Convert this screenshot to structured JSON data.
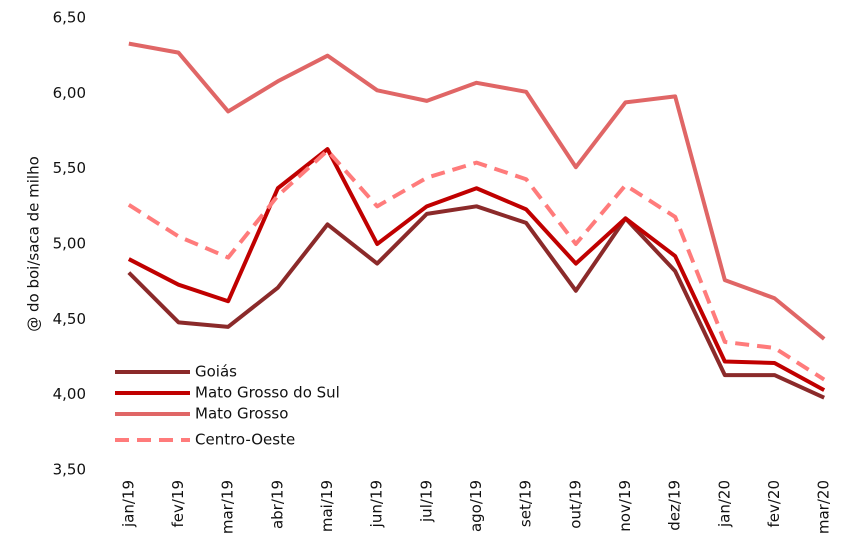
{
  "chart_data": {
    "type": "line",
    "y_label": "@ do boi/saca de milho",
    "categories": [
      "jan/19",
      "fev/19",
      "mar/19",
      "abr/19",
      "mai/19",
      "jun/19",
      "jul/19",
      "ago/19",
      "set/19",
      "out/19",
      "nov/19",
      "dez/19",
      "jan/20",
      "fev/20",
      "mar/20"
    ],
    "series": [
      {
        "name": "Goiás",
        "color": "#8b2a2a",
        "dashed": false,
        "values": [
          4.81,
          4.48,
          4.45,
          4.71,
          5.13,
          4.87,
          5.2,
          5.25,
          5.14,
          4.69,
          5.17,
          4.82,
          4.13,
          4.13,
          3.98
        ]
      },
      {
        "name": "Mato Grosso do Sul",
        "color": "#c00000",
        "dashed": false,
        "values": [
          4.9,
          4.73,
          4.62,
          5.37,
          5.63,
          5.0,
          5.25,
          5.37,
          5.23,
          4.87,
          5.17,
          4.92,
          4.22,
          4.21,
          4.03
        ]
      },
      {
        "name": "Mato Grosso",
        "color": "#e06666",
        "dashed": false,
        "values": [
          6.33,
          6.27,
          5.88,
          6.08,
          6.25,
          6.02,
          5.95,
          6.07,
          6.01,
          5.51,
          5.94,
          5.98,
          4.76,
          4.64,
          4.37
        ]
      },
      {
        "name": "Centro-Oeste",
        "color": "#ff7b7b",
        "dashed": true,
        "values": [
          5.26,
          5.05,
          4.91,
          5.32,
          5.62,
          5.25,
          5.44,
          5.54,
          5.43,
          5.0,
          5.39,
          5.18,
          4.35,
          4.31,
          4.1
        ]
      }
    ],
    "ylim": [
      3.5,
      6.5
    ],
    "yticks": [
      {
        "value": 3.5,
        "label": "3,50"
      },
      {
        "value": 4.0,
        "label": "4,00"
      },
      {
        "value": 4.5,
        "label": "4,50"
      },
      {
        "value": 5.0,
        "label": "5,00"
      },
      {
        "value": 5.5,
        "label": "5,50"
      },
      {
        "value": 6.0,
        "label": "6,00"
      },
      {
        "value": 6.5,
        "label": "6,50"
      }
    ],
    "grid": false,
    "legend": "lower left"
  }
}
